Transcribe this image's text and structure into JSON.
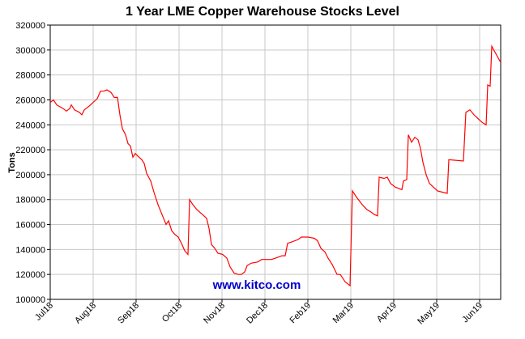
{
  "chart_data": {
    "type": "line",
    "title": "1 Year LME Copper Warehouse Stocks Level",
    "ylabel": "Tons",
    "watermark": "www.kitco.com",
    "color": "#ff0000",
    "grid": true,
    "x": [
      0,
      4,
      8,
      16,
      20,
      24,
      26,
      30,
      36,
      39,
      42,
      48,
      53,
      58,
      62,
      66,
      70,
      75,
      79,
      83,
      86,
      89,
      93,
      96,
      99,
      102,
      105,
      108,
      113,
      116,
      119,
      124,
      128,
      133,
      138,
      143,
      146,
      150,
      154,
      158,
      162,
      166,
      170,
      172,
      176,
      181,
      188,
      193,
      196,
      199,
      203,
      207,
      213,
      218,
      222,
      227,
      232,
      236,
      240,
      243,
      248,
      256,
      261,
      273,
      278,
      286,
      290,
      293,
      298,
      306,
      310,
      318,
      326,
      330,
      334,
      339,
      343,
      348,
      354,
      358,
      364,
      370,
      373,
      378,
      385,
      391,
      396,
      400,
      404,
      406,
      412,
      416,
      420,
      426,
      434,
      436,
      440,
      442,
      446,
      450,
      454,
      457,
      460,
      464,
      468,
      473,
      478,
      484,
      490,
      492,
      510,
      513,
      518,
      523,
      528,
      533,
      538,
      540,
      543,
      545,
      550,
      556
    ],
    "values": [
      258000,
      260000,
      256000,
      253000,
      251000,
      253000,
      256000,
      252000,
      250000,
      248000,
      252000,
      255000,
      258000,
      261000,
      267000,
      267000,
      268000,
      266000,
      262000,
      262000,
      248000,
      237000,
      232000,
      225000,
      223000,
      214000,
      217000,
      215000,
      212000,
      209000,
      201000,
      195000,
      186000,
      176000,
      168000,
      160000,
      163000,
      155000,
      152000,
      150000,
      145000,
      139000,
      136000,
      180000,
      176000,
      172000,
      168000,
      165000,
      157000,
      144000,
      141000,
      137000,
      136000,
      133000,
      126000,
      121000,
      120000,
      120000,
      122000,
      127000,
      129000,
      130000,
      132000,
      132000,
      133000,
      135000,
      135000,
      145000,
      146000,
      148000,
      150000,
      150000,
      149000,
      147000,
      141000,
      138000,
      133000,
      128000,
      120000,
      120000,
      114000,
      111000,
      187000,
      182000,
      176000,
      172000,
      170000,
      168000,
      167000,
      198000,
      197000,
      198000,
      193000,
      190000,
      188000,
      195000,
      196000,
      232000,
      226000,
      230000,
      228000,
      221000,
      210000,
      200000,
      193000,
      190000,
      187000,
      186000,
      185000,
      212000,
      211000,
      250000,
      252000,
      248000,
      245000,
      242000,
      240000,
      272000,
      271000,
      303000,
      297000,
      290000
    ],
    "xlim": [
      0,
      556
    ],
    "xticks": [
      {
        "value": 0,
        "label": "Jul18"
      },
      {
        "value": 53,
        "label": "Aug18"
      },
      {
        "value": 106,
        "label": "Sep18"
      },
      {
        "value": 159,
        "label": "Oct18"
      },
      {
        "value": 212,
        "label": "Nov18"
      },
      {
        "value": 265,
        "label": "Dec18"
      },
      {
        "value": 318,
        "label": "Feb19"
      },
      {
        "value": 371,
        "label": "Mar19"
      },
      {
        "value": 424,
        "label": "Apr19"
      },
      {
        "value": 477,
        "label": "May19"
      },
      {
        "value": 530,
        "label": "Jun19"
      }
    ],
    "ylim": [
      100000,
      320000
    ],
    "yticks": [
      100000,
      120000,
      140000,
      160000,
      180000,
      200000,
      220000,
      240000,
      260000,
      280000,
      300000,
      320000
    ]
  }
}
